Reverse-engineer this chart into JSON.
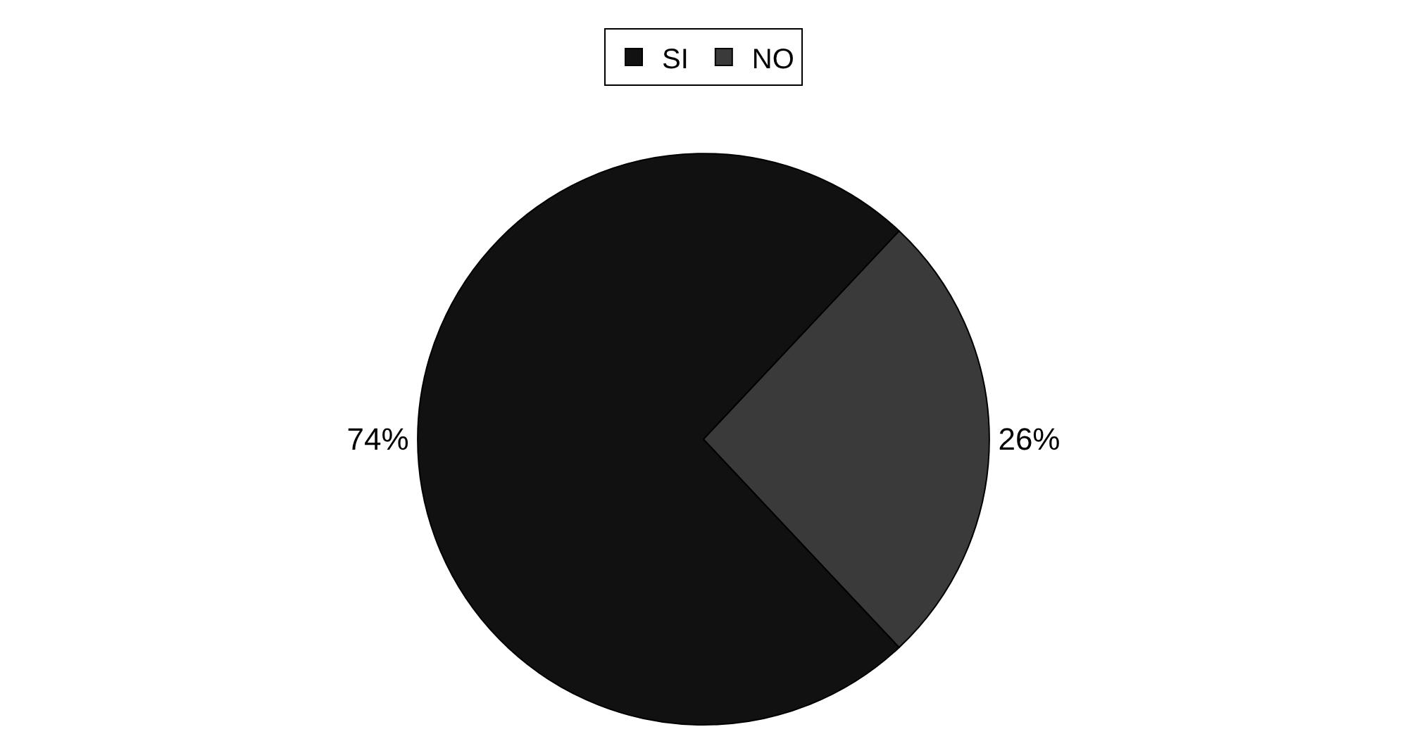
{
  "chart_data": {
    "type": "pie",
    "categories": [
      "SI",
      "NO"
    ],
    "values": [
      74,
      26
    ],
    "colors": [
      "#111111",
      "#3a3a3a"
    ],
    "value_labels": [
      "74%",
      "26%"
    ],
    "legend": "top"
  }
}
